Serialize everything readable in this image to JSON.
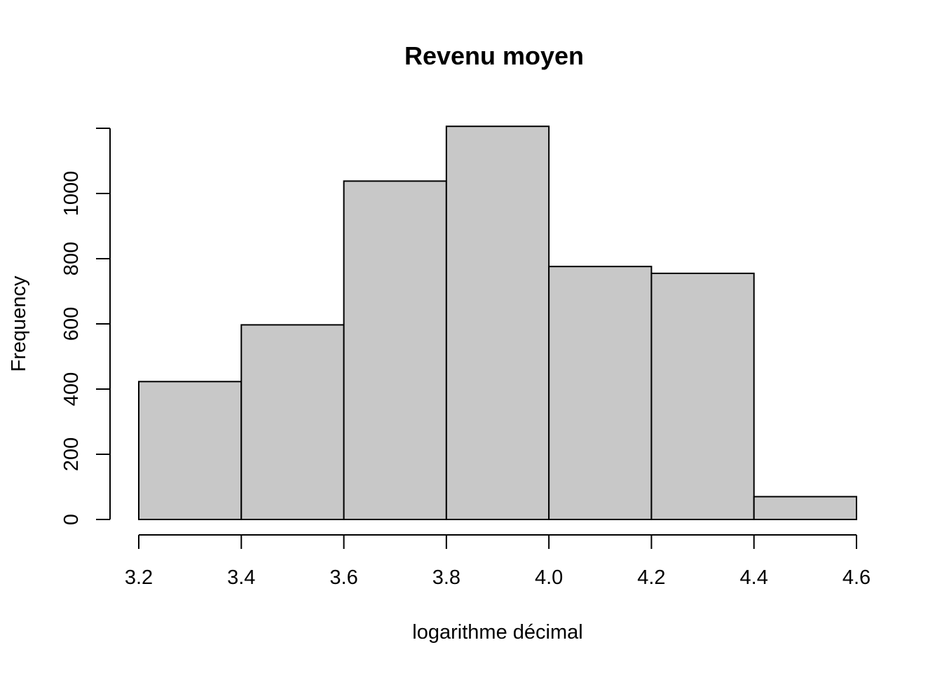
{
  "chart_data": {
    "type": "bar",
    "title": "Revenu moyen",
    "xlabel": "logarithme décimal",
    "ylabel": "Frequency",
    "bins": [
      {
        "start": 3.2,
        "end": 3.4,
        "count": 423
      },
      {
        "start": 3.4,
        "end": 3.6,
        "count": 597
      },
      {
        "start": 3.6,
        "end": 3.8,
        "count": 1038
      },
      {
        "start": 3.8,
        "end": 4.0,
        "count": 1206
      },
      {
        "start": 4.0,
        "end": 4.2,
        "count": 776
      },
      {
        "start": 4.2,
        "end": 4.4,
        "count": 755
      },
      {
        "start": 4.4,
        "end": 4.6,
        "count": 70
      }
    ],
    "x_ticks": [
      "3.2",
      "3.4",
      "3.6",
      "3.8",
      "4.0",
      "4.2",
      "4.4",
      "4.6"
    ],
    "y_ticks": [
      "0",
      "200",
      "400",
      "600",
      "800",
      "1000"
    ],
    "xlim": [
      3.2,
      4.6
    ],
    "ylim": [
      0,
      1200
    ],
    "bar_fill": "#c8c8c8",
    "bar_stroke": "#000000",
    "grid": false,
    "legend": "none"
  }
}
